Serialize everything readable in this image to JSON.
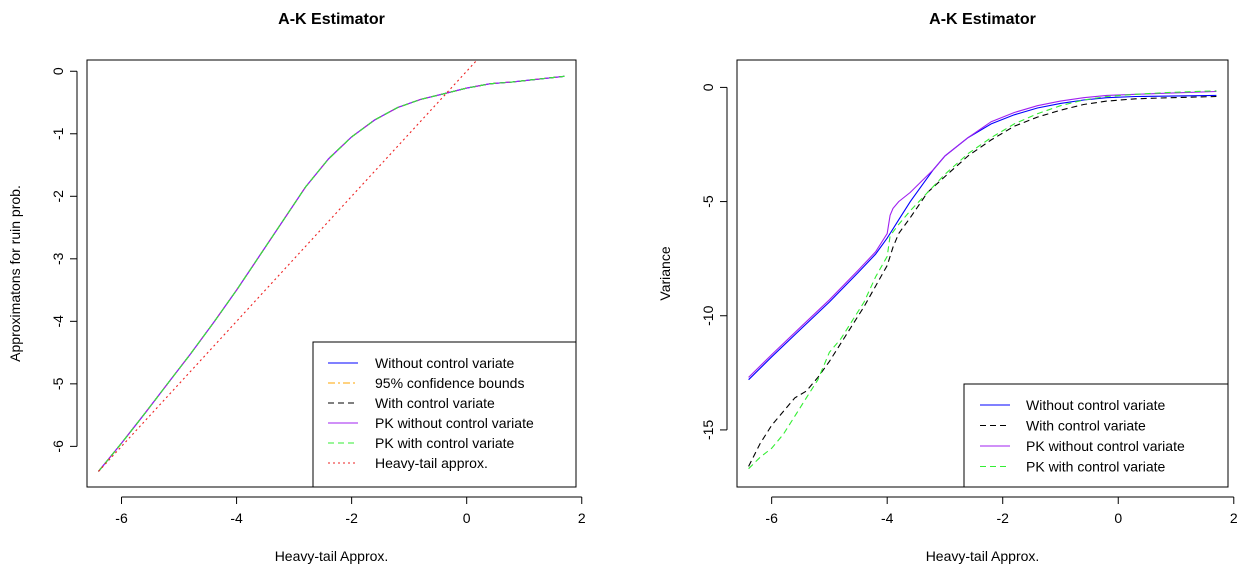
{
  "chart_data": [
    {
      "type": "line",
      "title": "A-K Estimator",
      "xlabel": "Heavy-tail Approx.",
      "ylabel": "Approximatons for ruin prob.",
      "xlim": [
        -6.6,
        1.9
      ],
      "ylim": [
        -6.65,
        0.18
      ],
      "xticks": [
        -6,
        -4,
        -2,
        0,
        2
      ],
      "yticks": [
        0,
        -1,
        -2,
        -3,
        -4,
        -5,
        -6
      ],
      "legend_position": "bottom-right",
      "series": [
        {
          "name": "Without control variate",
          "color": "#0000ff",
          "dash": "solid",
          "x": [
            -6.4,
            -6.0,
            -5.6,
            -5.2,
            -4.8,
            -4.4,
            -4.0,
            -3.6,
            -3.2,
            -2.8,
            -2.4,
            -2.0,
            -1.6,
            -1.2,
            -0.8,
            -0.4,
            0.0,
            0.4,
            0.8,
            1.2,
            1.7
          ],
          "y": [
            -6.4,
            -5.95,
            -5.48,
            -5.0,
            -4.52,
            -4.02,
            -3.5,
            -2.95,
            -2.4,
            -1.85,
            -1.4,
            -1.05,
            -0.78,
            -0.58,
            -0.45,
            -0.36,
            -0.27,
            -0.2,
            -0.17,
            -0.13,
            -0.08
          ]
        },
        {
          "name": "95% confidence bounds",
          "color": "#ffa500",
          "dash": "dashdot",
          "x": [
            -6.4,
            -6.0,
            -5.6,
            -5.2,
            -4.8,
            -4.4,
            -4.0,
            -3.6,
            -3.2,
            -2.8,
            -2.4,
            -2.0,
            -1.6,
            -1.2,
            -0.8,
            -0.4,
            0.0,
            0.4,
            0.8,
            1.2,
            1.7
          ],
          "y": [
            -6.4,
            -5.95,
            -5.48,
            -5.0,
            -4.52,
            -4.02,
            -3.5,
            -2.95,
            -2.4,
            -1.85,
            -1.4,
            -1.05,
            -0.78,
            -0.58,
            -0.45,
            -0.36,
            -0.27,
            -0.2,
            -0.17,
            -0.13,
            -0.08
          ]
        },
        {
          "name": "With control variate",
          "color": "#000000",
          "dash": "dashed",
          "x": [
            -6.4,
            -6.0,
            -5.6,
            -5.2,
            -4.8,
            -4.4,
            -4.0,
            -3.6,
            -3.2,
            -2.8,
            -2.4,
            -2.0,
            -1.6,
            -1.2,
            -0.8,
            -0.4,
            0.0,
            0.4,
            0.8,
            1.2,
            1.7
          ],
          "y": [
            -6.4,
            -5.95,
            -5.48,
            -5.0,
            -4.52,
            -4.02,
            -3.5,
            -2.95,
            -2.4,
            -1.85,
            -1.4,
            -1.05,
            -0.78,
            -0.58,
            -0.45,
            -0.36,
            -0.27,
            -0.2,
            -0.17,
            -0.13,
            -0.08
          ]
        },
        {
          "name": "PK without control variate",
          "color": "#a020f0",
          "dash": "solid",
          "x": [
            -6.4,
            -6.0,
            -5.6,
            -5.2,
            -4.8,
            -4.4,
            -4.0,
            -3.6,
            -3.2,
            -2.8,
            -2.4,
            -2.0,
            -1.6,
            -1.2,
            -0.8,
            -0.4,
            0.0,
            0.4,
            0.8,
            1.2,
            1.7
          ],
          "y": [
            -6.4,
            -5.95,
            -5.48,
            -5.0,
            -4.52,
            -4.02,
            -3.5,
            -2.95,
            -2.4,
            -1.85,
            -1.4,
            -1.05,
            -0.78,
            -0.58,
            -0.45,
            -0.36,
            -0.27,
            -0.2,
            -0.17,
            -0.13,
            -0.08
          ]
        },
        {
          "name": "PK with control variate",
          "color": "#33ee33",
          "dash": "dashed",
          "x": [
            -6.4,
            -6.0,
            -5.6,
            -5.2,
            -4.8,
            -4.4,
            -4.0,
            -3.6,
            -3.2,
            -2.8,
            -2.4,
            -2.0,
            -1.6,
            -1.2,
            -0.8,
            -0.4,
            0.0,
            0.4,
            0.8,
            1.2,
            1.7
          ],
          "y": [
            -6.4,
            -5.95,
            -5.48,
            -5.0,
            -4.52,
            -4.02,
            -3.5,
            -2.95,
            -2.4,
            -1.85,
            -1.4,
            -1.05,
            -0.78,
            -0.58,
            -0.45,
            -0.36,
            -0.27,
            -0.2,
            -0.17,
            -0.13,
            -0.08
          ]
        },
        {
          "name": "Heavy-tail approx.",
          "color": "#ee2222",
          "dash": "dotted",
          "x": [
            -6.4,
            0.2
          ],
          "y": [
            -6.4,
            0.2
          ]
        }
      ]
    },
    {
      "type": "line",
      "title": "A-K Estimator",
      "xlabel": "Heavy-tail Approx.",
      "ylabel": "Variance",
      "xlim": [
        -6.6,
        1.9
      ],
      "ylim": [
        -17.5,
        1.2
      ],
      "xticks": [
        -6,
        -4,
        -2,
        0,
        2
      ],
      "yticks": [
        0,
        -5,
        -10,
        -15
      ],
      "legend_position": "bottom-right",
      "series": [
        {
          "name": "Without control variate",
          "color": "#0000ff",
          "dash": "solid",
          "x": [
            -6.4,
            -6.0,
            -5.5,
            -5.0,
            -4.5,
            -4.2,
            -4.0,
            -3.8,
            -3.6,
            -3.4,
            -3.2,
            -3.0,
            -2.6,
            -2.2,
            -1.8,
            -1.4,
            -1.0,
            -0.6,
            -0.2,
            0.3,
            0.9,
            1.7
          ],
          "y": [
            -12.8,
            -11.8,
            -10.6,
            -9.4,
            -8.1,
            -7.3,
            -6.6,
            -5.8,
            -5.0,
            -4.3,
            -3.6,
            -3.0,
            -2.2,
            -1.6,
            -1.2,
            -0.9,
            -0.7,
            -0.55,
            -0.45,
            -0.4,
            -0.38,
            -0.35
          ]
        },
        {
          "name": "With control variate",
          "color": "#000000",
          "dash": "dashed",
          "x": [
            -6.4,
            -6.2,
            -6.0,
            -5.8,
            -5.6,
            -5.4,
            -5.2,
            -5.0,
            -4.8,
            -4.6,
            -4.4,
            -4.2,
            -4.0,
            -3.9,
            -3.8,
            -3.6,
            -3.3,
            -3.0,
            -2.6,
            -2.2,
            -1.8,
            -1.4,
            -1.0,
            -0.6,
            -0.2,
            0.3,
            0.9,
            1.7
          ],
          "y": [
            -16.6,
            -15.6,
            -14.8,
            -14.2,
            -13.6,
            -13.3,
            -12.7,
            -12.0,
            -11.2,
            -10.4,
            -9.6,
            -8.7,
            -7.8,
            -7.0,
            -6.4,
            -5.7,
            -4.6,
            -3.9,
            -3.0,
            -2.3,
            -1.7,
            -1.3,
            -1.0,
            -0.75,
            -0.6,
            -0.5,
            -0.45,
            -0.4
          ]
        },
        {
          "name": "PK without control variate",
          "color": "#a020f0",
          "dash": "solid",
          "x": [
            -6.4,
            -6.0,
            -5.5,
            -5.0,
            -4.5,
            -4.2,
            -4.0,
            -3.95,
            -3.9,
            -3.8,
            -3.6,
            -3.4,
            -3.2,
            -3.0,
            -2.6,
            -2.2,
            -1.8,
            -1.4,
            -1.0,
            -0.6,
            -0.2,
            0.3,
            0.9,
            1.7
          ],
          "y": [
            -12.7,
            -11.7,
            -10.5,
            -9.3,
            -8.0,
            -7.2,
            -6.4,
            -5.6,
            -5.3,
            -5.0,
            -4.6,
            -4.1,
            -3.6,
            -3.0,
            -2.2,
            -1.5,
            -1.1,
            -0.8,
            -0.6,
            -0.45,
            -0.35,
            -0.3,
            -0.25,
            -0.18
          ]
        },
        {
          "name": "PK with control variate",
          "color": "#33ee33",
          "dash": "dashed",
          "x": [
            -6.4,
            -6.2,
            -6.0,
            -5.8,
            -5.6,
            -5.4,
            -5.2,
            -5.0,
            -4.8,
            -4.6,
            -4.4,
            -4.2,
            -4.0,
            -3.95,
            -3.8,
            -3.6,
            -3.3,
            -3.0,
            -2.6,
            -2.2,
            -1.8,
            -1.4,
            -1.0,
            -0.6,
            -0.2,
            0.3,
            0.9,
            1.7
          ],
          "y": [
            -16.7,
            -16.2,
            -15.8,
            -15.2,
            -14.4,
            -13.6,
            -12.8,
            -11.6,
            -11.0,
            -10.2,
            -9.4,
            -8.3,
            -7.4,
            -6.5,
            -6.0,
            -5.4,
            -4.6,
            -3.8,
            -2.9,
            -2.2,
            -1.6,
            -1.15,
            -0.8,
            -0.55,
            -0.4,
            -0.3,
            -0.22,
            -0.15
          ]
        }
      ]
    }
  ]
}
